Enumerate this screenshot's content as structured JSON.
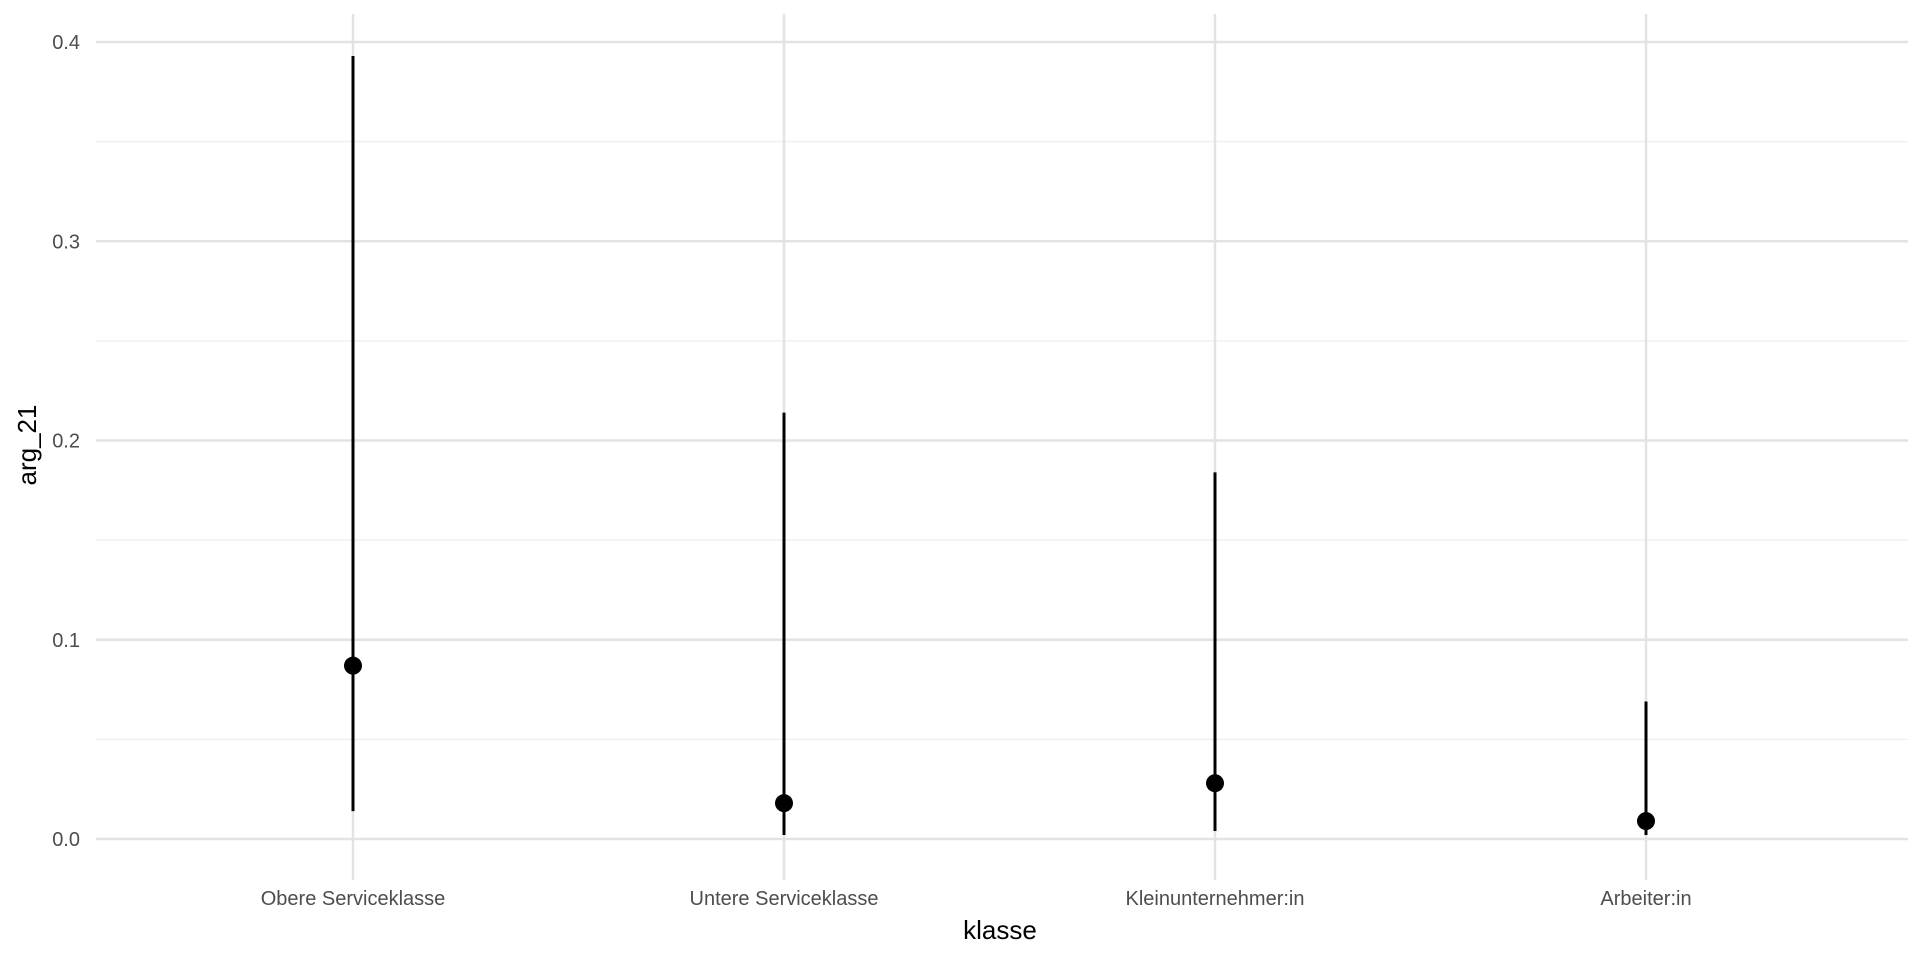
{
  "chart_data": {
    "type": "scatter",
    "subtype": "pointrange",
    "xlabel": "klasse",
    "ylabel": "arg_21",
    "categories": [
      "Obere Serviceklasse",
      "Untere Serviceklasse",
      "Kleinunternehmer:in",
      "Arbeiter:in"
    ],
    "estimate": [
      0.087,
      0.018,
      0.028,
      0.009
    ],
    "ci_lower": [
      0.014,
      0.002,
      0.004,
      0.002
    ],
    "ci_upper": [
      0.393,
      0.214,
      0.184,
      0.069
    ],
    "ylim": [
      0.0,
      0.4
    ],
    "yticks": [
      0.0,
      0.1,
      0.2,
      0.3,
      0.4
    ],
    "ytick_labels": [
      "0.0",
      "0.1",
      "0.2",
      "0.3",
      "0.4"
    ],
    "grid": true,
    "legend": "none",
    "colors": {
      "points": "#000000",
      "major_grid": "#e3e3e3",
      "minor_grid": "#f0f0f0",
      "tick_text": "#4d4d4d"
    }
  }
}
